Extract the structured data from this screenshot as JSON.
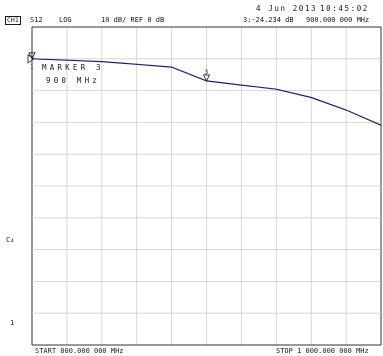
{
  "header": {
    "date": "4 Jun 2013",
    "time": "10:45:02",
    "channel": "CH1",
    "parameter": "S12",
    "format": "LOG",
    "scale_ref": "10 dB/ REF 0 dB",
    "marker_readout": "3:-24.234 dB",
    "marker_freq_readout": "900.000 000 MHz"
  },
  "marker_box": {
    "title": "MARKER 3",
    "value": "900 MHz"
  },
  "side_labels": {
    "c": "C₄",
    "one": "1"
  },
  "footer": {
    "start": "START 800.000 000 MHz",
    "stop": "STOP 1 000.000 000 MHz"
  },
  "markers": {
    "ref": "▷",
    "m1_label": "1",
    "m3_label": "3"
  },
  "trace": {
    "color": "#1c1f7a",
    "grid_color": "#cfcfcf",
    "x_start_mhz": 800,
    "x_stop_mhz": 1000,
    "ref_db": 0,
    "db_per_div": 10,
    "divisions": 10,
    "points": [
      [
        800,
        -22.6
      ],
      [
        820,
        -22.7
      ],
      [
        840,
        -22.8
      ],
      [
        860,
        -23.0
      ],
      [
        880,
        -23.2
      ],
      [
        900,
        -24.2
      ],
      [
        920,
        -24.5
      ],
      [
        940,
        -24.8
      ],
      [
        960,
        -25.4
      ],
      [
        980,
        -26.3
      ],
      [
        1000,
        -27.4
      ]
    ],
    "marker3_mhz": 900,
    "marker1_mhz": 800
  }
}
